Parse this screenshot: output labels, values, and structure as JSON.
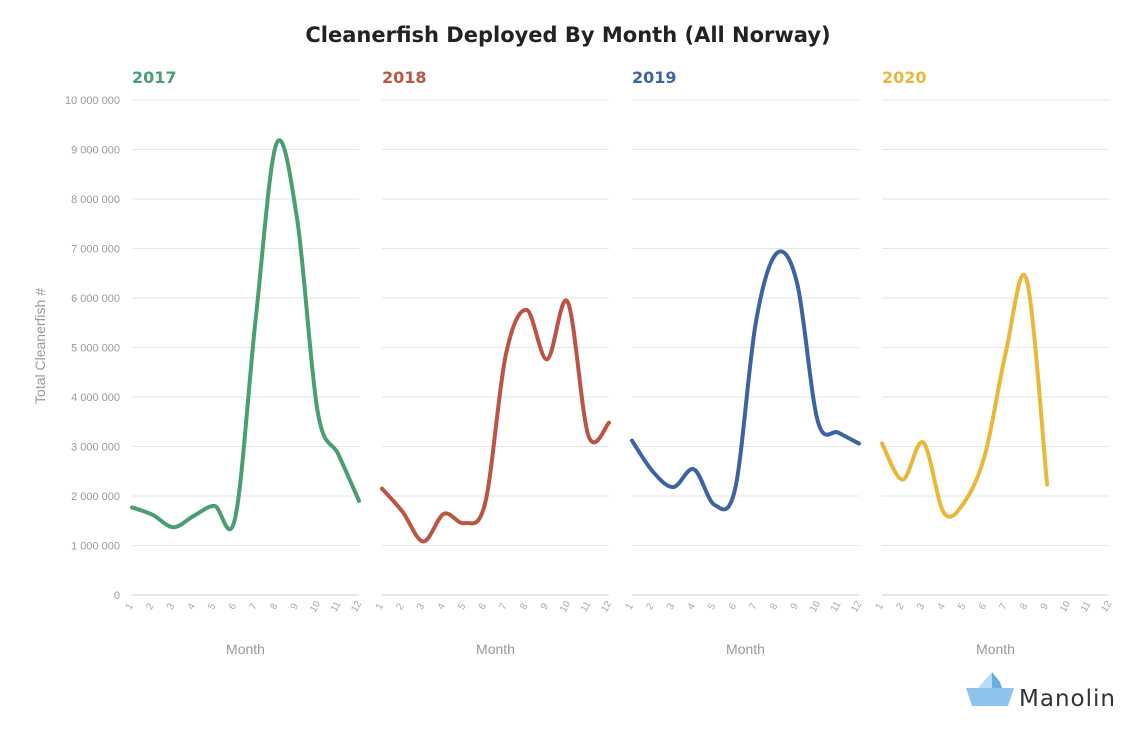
{
  "chart_data": {
    "type": "line",
    "title": "Cleanerfish Deployed By Month (All Norway)",
    "ylabel": "Total Cleanerfish #",
    "xlabel": "Month",
    "ylim": [
      0,
      10000000
    ],
    "yticks": [
      0,
      1000000,
      2000000,
      3000000,
      4000000,
      5000000,
      6000000,
      7000000,
      8000000,
      9000000,
      10000000
    ],
    "ytick_labels": [
      "0",
      "1 000 000",
      "2 000 000",
      "3 000 000",
      "4 000 000",
      "5 000 000",
      "6 000 000",
      "7 000 000",
      "8 000 000",
      "9 000 000",
      "10 000 000"
    ],
    "x": [
      1,
      2,
      3,
      4,
      5,
      6,
      7,
      8,
      9,
      10,
      11,
      12
    ],
    "xlim": [
      1,
      12
    ],
    "grid": true,
    "panels": [
      {
        "name": "2017",
        "color": "#4a9e74",
        "values": [
          1770000,
          1620000,
          1370000,
          1600000,
          1800000,
          1560000,
          5600000,
          9120000,
          7600000,
          3700000,
          2840000,
          1900000
        ]
      },
      {
        "name": "2018",
        "color": "#bc5443",
        "values": [
          2150000,
          1680000,
          1080000,
          1640000,
          1450000,
          1860000,
          4850000,
          5760000,
          4760000,
          5920000,
          3220000,
          3480000
        ]
      },
      {
        "name": "2019",
        "color": "#3d63a2",
        "values": [
          3120000,
          2500000,
          2180000,
          2540000,
          1820000,
          2150000,
          5500000,
          6900000,
          6300000,
          3520000,
          3280000,
          3060000
        ]
      },
      {
        "name": "2020",
        "color": "#e9b83b",
        "values": [
          3060000,
          2330000,
          3080000,
          1660000,
          1880000,
          2850000,
          4900000,
          6380000,
          2230000
        ]
      }
    ]
  },
  "brand": {
    "name": "Manolin",
    "icon": "paper-boat-icon"
  }
}
